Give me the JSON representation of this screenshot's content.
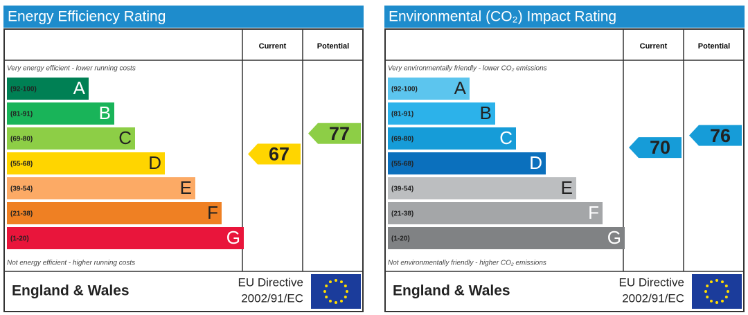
{
  "chart_data": [
    {
      "type": "epc",
      "title": "Energy Efficiency Rating",
      "columns": [
        "Current",
        "Potential"
      ],
      "top_note": "Very energy efficient - lower running costs",
      "bottom_note": "Not energy efficient - higher running costs",
      "bands": [
        {
          "range": "(92-100)",
          "letter": "A",
          "color": "#008054",
          "letter_color": "#ffffff"
        },
        {
          "range": "(81-91)",
          "letter": "B",
          "color": "#19b459",
          "letter_color": "#ffffff"
        },
        {
          "range": "(69-80)",
          "letter": "C",
          "color": "#8dce46",
          "letter_color": "#222222"
        },
        {
          "range": "(55-68)",
          "letter": "D",
          "color": "#ffd500",
          "letter_color": "#222222"
        },
        {
          "range": "(39-54)",
          "letter": "E",
          "color": "#fcaa65",
          "letter_color": "#222222"
        },
        {
          "range": "(21-38)",
          "letter": "F",
          "color": "#ef8023",
          "letter_color": "#222222"
        },
        {
          "range": "(1-20)",
          "letter": "G",
          "color": "#e9153b",
          "letter_color": "#ffffff"
        }
      ],
      "current": 67,
      "potential": 77,
      "region": "England & Wales",
      "directive": [
        "EU Directive",
        "2002/91/EC"
      ]
    },
    {
      "type": "epc",
      "title": "Environmental (CO₂) Impact Rating",
      "columns": [
        "Current",
        "Potential"
      ],
      "top_note": "Very environmentally friendly - lower CO₂ emissions",
      "bottom_note": "Not environmentally friendly - higher CO₂ emissions",
      "bands": [
        {
          "range": "(92-100)",
          "letter": "A",
          "color": "#5cc5ee",
          "letter_color": "#222222"
        },
        {
          "range": "(81-91)",
          "letter": "B",
          "color": "#2cb2ea",
          "letter_color": "#222222"
        },
        {
          "range": "(69-80)",
          "letter": "C",
          "color": "#169cd8",
          "letter_color": "#ffffff"
        },
        {
          "range": "(55-68)",
          "letter": "D",
          "color": "#0b70bd",
          "letter_color": "#ffffff"
        },
        {
          "range": "(39-54)",
          "letter": "E",
          "color": "#bcbec0",
          "letter_color": "#222222"
        },
        {
          "range": "(21-38)",
          "letter": "F",
          "color": "#a4a6a8",
          "letter_color": "#ffffff"
        },
        {
          "range": "(1-20)",
          "letter": "G",
          "color": "#808284",
          "letter_color": "#ffffff"
        }
      ],
      "current": 70,
      "potential": 76,
      "region": "England & Wales",
      "directive": [
        "EU Directive",
        "2002/91/EC"
      ]
    }
  ]
}
